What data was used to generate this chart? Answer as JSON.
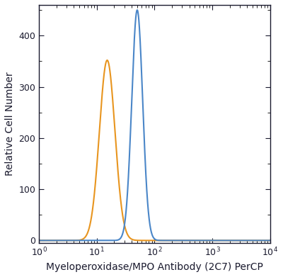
{
  "title": "",
  "xlabel": "Myeloperoxidase/MPO Antibody (2C7) PerCP",
  "ylabel": "Relative Cell Number",
  "xlim_log": [
    0.0,
    4.0
  ],
  "ylim": [
    -5,
    460
  ],
  "yticks": [
    0,
    100,
    200,
    300,
    400
  ],
  "background_color": "#ffffff",
  "orange_color": "#E8951F",
  "blue_color": "#4A86C8",
  "orange_peak_log": 1.18,
  "orange_peak_height": 352,
  "orange_sigma_log": 0.135,
  "blue_peak_log": 1.7,
  "blue_peak_height": 450,
  "blue_sigma_log": 0.095,
  "line_width": 1.5,
  "xlabel_fontsize": 10,
  "ylabel_fontsize": 10,
  "tick_fontsize": 9,
  "figsize": [
    4.0,
    3.91
  ],
  "dpi": 100
}
